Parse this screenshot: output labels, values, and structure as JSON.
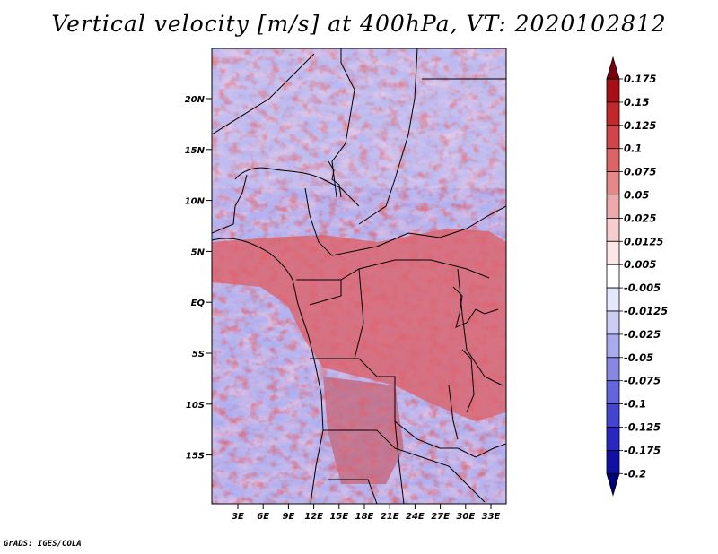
{
  "title": "Vertical velocity [m/s] at 400hPa, VT: 2020102812",
  "footer": "GrADS: IGES/COLA",
  "map": {
    "lat_labels": [
      "20N",
      "15N",
      "10N",
      "5N",
      "EQ",
      "5S",
      "10S",
      "15S"
    ],
    "lon_labels": [
      "3E",
      "6E",
      "9E",
      "12E",
      "15E",
      "18E",
      "21E",
      "24E",
      "27E",
      "30E",
      "33E"
    ],
    "region": "Central Africa"
  },
  "colorbar": {
    "labels": [
      "0.175",
      "0.15",
      "0.125",
      "0.1",
      "0.075",
      "0.05",
      "0.025",
      "0.0125",
      "0.005",
      "-0.005",
      "-0.0125",
      "-0.025",
      "-0.05",
      "-0.075",
      "-0.1",
      "-0.125",
      "-0.175",
      "-0.2"
    ],
    "colors": [
      "#7a0010",
      "#a50f15",
      "#c0282a",
      "#d2444a",
      "#dc6464",
      "#e48888",
      "#eeaaaa",
      "#f6cccc",
      "#fce6e6",
      "#ffffff",
      "#e6e6fc",
      "#ccccf6",
      "#aaaaee",
      "#8888e4",
      "#6464dc",
      "#4444d2",
      "#2828c0",
      "#1010a5",
      "#00007a"
    ]
  }
}
